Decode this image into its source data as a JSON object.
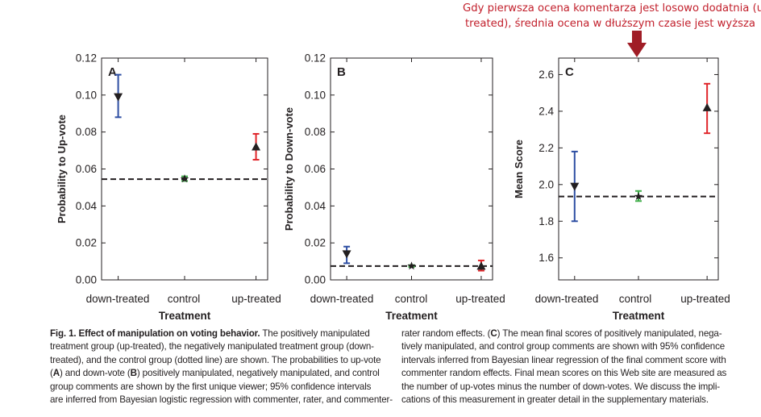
{
  "annotation": {
    "lines": [
      "Gdy pierwsza ocena komentarza jest losowo dodatnia (up-",
      "treated), średnia ocena w dłuższym czasie jest wyższa"
    ],
    "color": "#c2202c"
  },
  "colors": {
    "down_treated": "#2e4fa3",
    "control": "#3fae49",
    "up_treated": "#e0262b",
    "arrow": "#a01d26"
  },
  "chart_data": [
    {
      "type": "errorbar",
      "panel": "A",
      "xlabel": "Treatment",
      "ylabel": "Probability to Up-vote",
      "categories": [
        "down-treated",
        "control",
        "up-treated"
      ],
      "ylim": [
        0.0,
        0.12
      ],
      "yticks": [
        "0.00",
        "0.02",
        "0.04",
        "0.06",
        "0.08",
        "0.10",
        "0.12"
      ],
      "reference_line": 0.0545,
      "points": [
        {
          "category": "down-treated",
          "value": 0.099,
          "lower": 0.088,
          "upper": 0.111,
          "marker": "triangle-down"
        },
        {
          "category": "control",
          "value": 0.0547,
          "lower": 0.0535,
          "upper": 0.056,
          "marker": "star"
        },
        {
          "category": "up-treated",
          "value": 0.072,
          "lower": 0.065,
          "upper": 0.079,
          "marker": "triangle-up"
        }
      ]
    },
    {
      "type": "errorbar",
      "panel": "B",
      "xlabel": "Treatment",
      "ylabel": "Probability to Down-vote",
      "categories": [
        "down-treated",
        "control",
        "up-treated"
      ],
      "ylim": [
        0.0,
        0.12
      ],
      "yticks": [
        "0.00",
        "0.02",
        "0.04",
        "0.06",
        "0.08",
        "0.10",
        "0.12"
      ],
      "reference_line": 0.0075,
      "points": [
        {
          "category": "down-treated",
          "value": 0.014,
          "lower": 0.009,
          "upper": 0.018,
          "marker": "triangle-down"
        },
        {
          "category": "control",
          "value": 0.0075,
          "lower": 0.007,
          "upper": 0.008,
          "marker": "star"
        },
        {
          "category": "up-treated",
          "value": 0.0075,
          "lower": 0.005,
          "upper": 0.0105,
          "marker": "triangle-up"
        }
      ]
    },
    {
      "type": "errorbar",
      "panel": "C",
      "xlabel": "Treatment",
      "ylabel": "Mean Score",
      "categories": [
        "down-treated",
        "control",
        "up-treated"
      ],
      "ylim": [
        1.48,
        2.69
      ],
      "yticks": [
        "1.6",
        "1.8",
        "2.0",
        "2.2",
        "2.4",
        "2.6"
      ],
      "reference_line": 1.935,
      "points": [
        {
          "category": "down-treated",
          "value": 1.99,
          "lower": 1.8,
          "upper": 2.18,
          "marker": "triangle-down"
        },
        {
          "category": "control",
          "value": 1.935,
          "lower": 1.91,
          "upper": 1.965,
          "marker": "star"
        },
        {
          "category": "up-treated",
          "value": 2.42,
          "lower": 2.28,
          "upper": 2.55,
          "marker": "triangle-up"
        }
      ]
    }
  ],
  "caption": {
    "left_lines": [
      [
        "Fig. 1. ",
        "Effect of manipulation on voting behavior.",
        " The positively manipulated"
      ],
      [
        "treatment group (up-treated), the negatively manipulated treatment group (down-"
      ],
      [
        "treated), and the control group (dotted line) are shown. The probabilities to up-vote"
      ],
      [
        "(",
        "A",
        ") and down-vote (",
        "B",
        ") positively manipulated, negatively manipulated, and control"
      ],
      [
        "group comments are shown by the first unique viewer; 95% confidence intervals"
      ],
      [
        "are inferred from Bayesian logistic regression with commenter, rater, and commenter-"
      ]
    ],
    "right_lines": [
      [
        "rater random effects. (",
        "C",
        ") The mean final scores of positively manipulated, nega-"
      ],
      [
        "tively manipulated, and control group comments are shown with 95% confidence"
      ],
      [
        "intervals inferred from Bayesian linear regression of the final comment score with"
      ],
      [
        "commenter random effects. Final mean scores on this Web site are measured as"
      ],
      [
        "the number of up-votes minus the number of down-votes. We discuss the impli-"
      ],
      [
        "cations of this measurement in greater detail in the supplementary materials."
      ]
    ]
  }
}
